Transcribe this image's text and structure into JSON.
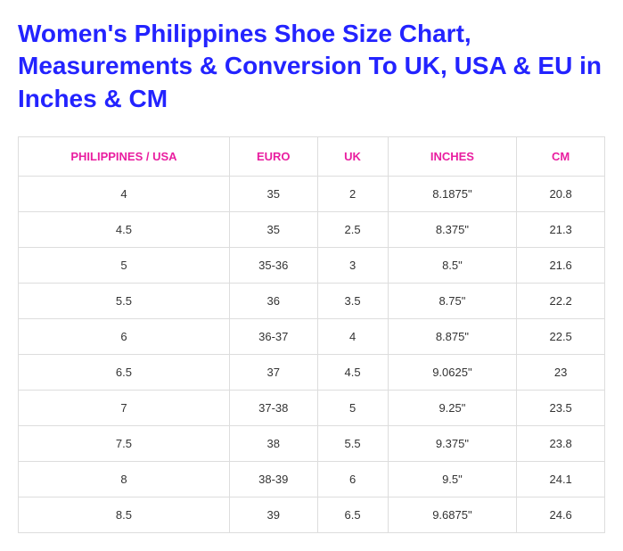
{
  "title": "Women's Philippines Shoe Size Chart, Measurements & Conversion To UK, USA & EU in Inches & CM",
  "table": {
    "columns": [
      {
        "label": "PHILIPPINES / USA",
        "class": "col-ph"
      },
      {
        "label": "EURO",
        "class": "col-euro"
      },
      {
        "label": "UK",
        "class": "col-uk"
      },
      {
        "label": "INCHES",
        "class": "col-in"
      },
      {
        "label": "CM",
        "class": "col-cm"
      }
    ],
    "rows": [
      [
        "4",
        "35",
        "2",
        "8.1875\"",
        "20.8"
      ],
      [
        "4.5",
        "35",
        "2.5",
        "8.375\"",
        "21.3"
      ],
      [
        "5",
        "35-36",
        "3",
        "8.5\"",
        "21.6"
      ],
      [
        "5.5",
        "36",
        "3.5",
        "8.75\"",
        "22.2"
      ],
      [
        "6",
        "36-37",
        "4",
        "8.875\"",
        "22.5"
      ],
      [
        "6.5",
        "37",
        "4.5",
        "9.0625\"",
        "23"
      ],
      [
        "7",
        "37-38",
        "5",
        "9.25\"",
        "23.5"
      ],
      [
        "7.5",
        "38",
        "5.5",
        "9.375\"",
        "23.8"
      ],
      [
        "8",
        "38-39",
        "6",
        "9.5\"",
        "24.1"
      ],
      [
        "8.5",
        "39",
        "6.5",
        "9.6875\"",
        "24.6"
      ]
    ]
  },
  "colors": {
    "title": "#2323ff",
    "header_text": "#e91ea0",
    "cell_text": "#333333",
    "border": "#dddddd",
    "background": "#ffffff"
  },
  "typography": {
    "title_fontsize": 28,
    "title_weight": 700,
    "header_fontsize": 13,
    "header_weight": 700,
    "cell_fontsize": 13,
    "font_family": "Segoe UI"
  }
}
